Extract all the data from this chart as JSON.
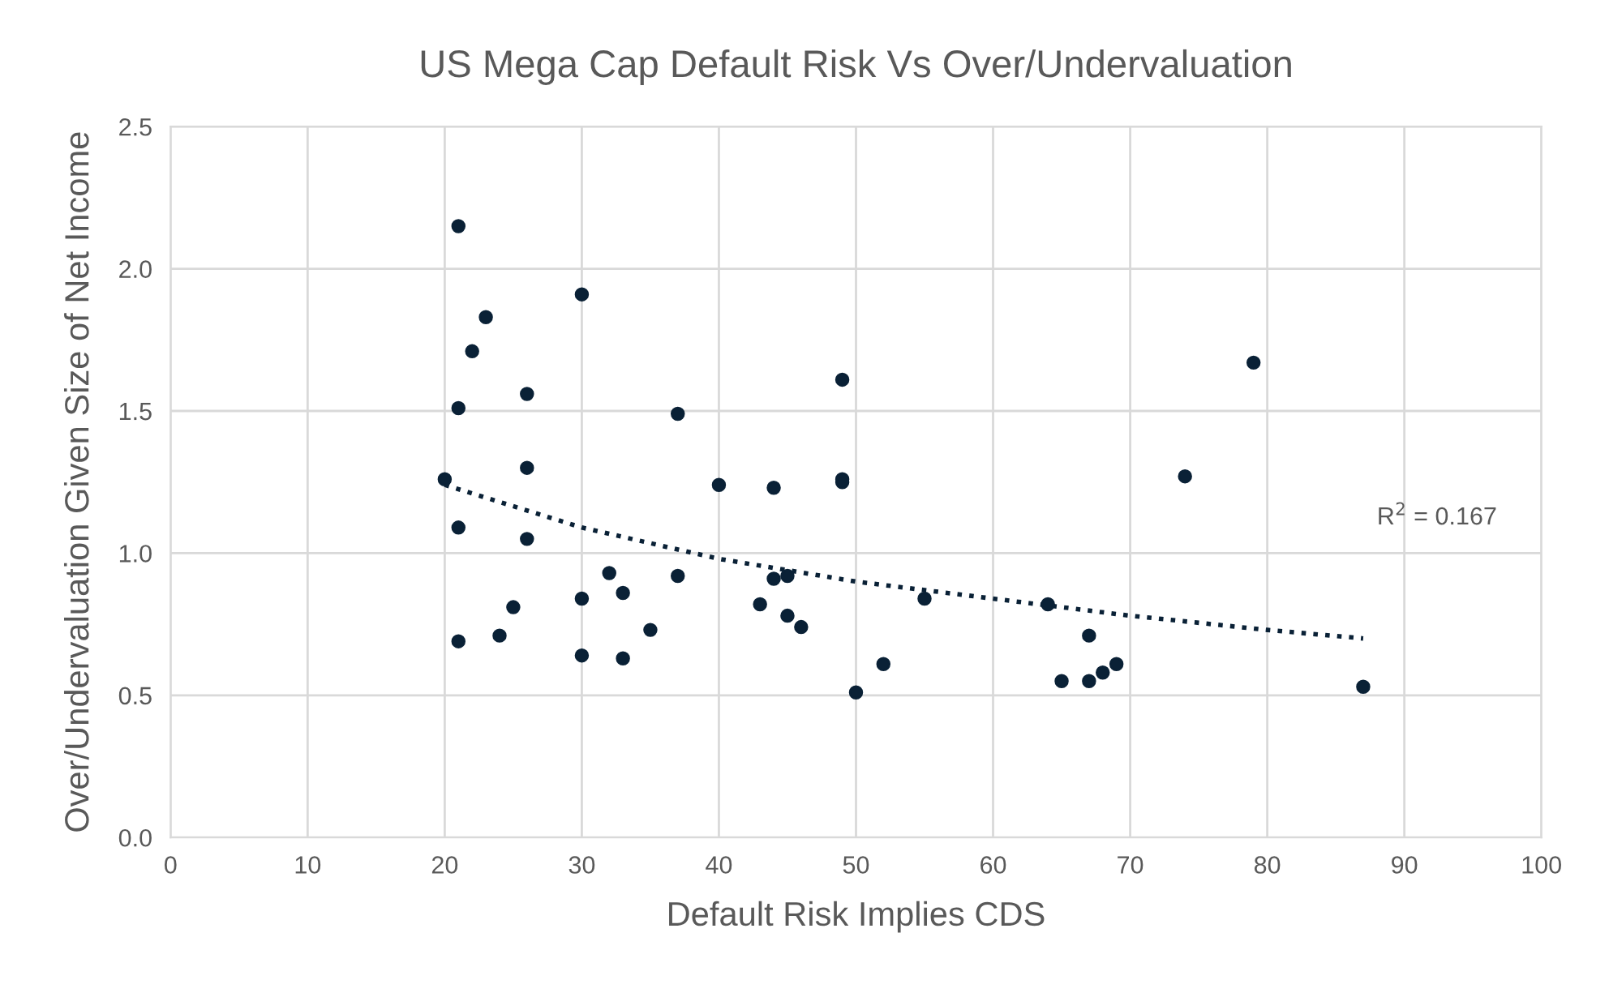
{
  "chart_data": {
    "type": "scatter",
    "title": "US Mega Cap Default Risk Vs Over/Undervaluation",
    "xlabel": "Default Risk Implies CDS",
    "ylabel": "Over/Undervaluation Given Size of Net Income",
    "xlim": [
      0,
      100
    ],
    "xticks": [
      0,
      10,
      20,
      30,
      40,
      50,
      60,
      70,
      80,
      90,
      100
    ],
    "ylim": [
      0,
      2.5
    ],
    "yticks": [
      {
        "value": 0,
        "label": "0.0"
      },
      {
        "value": 0.5,
        "label": "0.5"
      },
      {
        "value": 1.0,
        "label": "1.0"
      },
      {
        "value": 1.5,
        "label": "1.5"
      },
      {
        "value": 2.0,
        "label": "2.0"
      },
      {
        "value": 2.5,
        "label": "2.5"
      }
    ],
    "grid": true,
    "marker": "circle",
    "annotations": [
      "R$^{2}$ = 0.167"
    ],
    "series": [
      {
        "color": "#0a2136",
        "x": [
          20,
          21,
          21,
          21,
          21,
          22,
          23,
          24,
          25,
          26,
          26,
          26,
          30,
          30,
          30,
          32,
          33,
          33,
          35,
          37,
          37,
          40,
          43,
          44,
          44,
          45,
          45,
          46,
          49,
          49,
          49,
          50,
          52,
          55,
          64,
          65,
          67,
          67,
          68,
          69,
          74,
          79,
          87
        ],
        "values": [
          1.26,
          2.15,
          1.51,
          1.09,
          0.69,
          1.71,
          1.83,
          0.71,
          0.81,
          1.56,
          1.3,
          1.05,
          1.91,
          0.84,
          0.64,
          0.93,
          0.86,
          0.63,
          0.73,
          1.49,
          0.92,
          1.24,
          0.82,
          1.23,
          0.91,
          0.92,
          0.78,
          0.74,
          1.61,
          1.26,
          1.25,
          0.51,
          0.61,
          0.84,
          0.82,
          0.55,
          0.71,
          0.55,
          0.58,
          0.61,
          1.27,
          1.67,
          0.53
        ]
      },
      {
        "type": "line",
        "color": "#0a2136",
        "line_style": "dotted",
        "marker": "none",
        "x": [
          20,
          30,
          40,
          50,
          60,
          70,
          80,
          87
        ],
        "values": [
          1.24,
          1.09,
          0.98,
          0.9,
          0.84,
          0.78,
          0.73,
          0.7
        ]
      }
    ]
  }
}
